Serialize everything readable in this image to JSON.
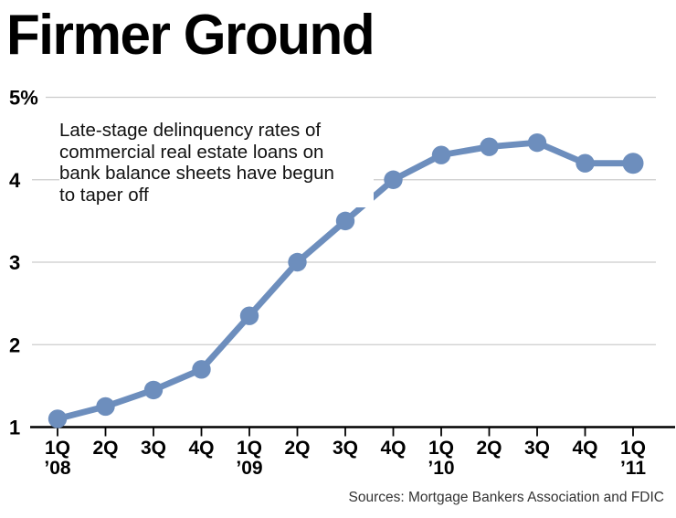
{
  "source": "Sources: Mortgage Bankers Association and FDIC",
  "annotation": {
    "lines": [
      "Late-stage delinquency rates of",
      "commercial real estate loans on",
      "bank balance sheets have begun",
      "to taper off"
    ]
  },
  "chart_data": {
    "type": "line",
    "title": "Firmer Ground",
    "subtitle": "Late-stage delinquency rates of commercial real estate loans on bank balance sheets have begun to taper off",
    "categories": [
      "1Q ’08",
      "2Q ’08",
      "3Q ’08",
      "4Q ’08",
      "1Q ’09",
      "2Q ’09",
      "3Q ’09",
      "4Q ’09",
      "1Q ’10",
      "2Q ’10",
      "3Q ’10",
      "4Q ’10",
      "1Q ’11"
    ],
    "x_tick_labels": [
      "1Q",
      "2Q",
      "3Q",
      "4Q",
      "1Q",
      "2Q",
      "3Q",
      "4Q",
      "1Q",
      "2Q",
      "3Q",
      "4Q",
      "1Q"
    ],
    "x_year_labels": [
      {
        "index": 0,
        "label": "’08"
      },
      {
        "index": 4,
        "label": "’09"
      },
      {
        "index": 8,
        "label": "’10"
      },
      {
        "index": 12,
        "label": "’11"
      }
    ],
    "values": [
      1.1,
      1.25,
      1.45,
      1.7,
      2.35,
      3.0,
      3.5,
      4.0,
      4.3,
      4.4,
      4.45,
      4.2,
      4.2
    ],
    "unit": "%",
    "y_ticks": [
      {
        "value": 5,
        "label": "5%"
      },
      {
        "value": 4,
        "label": "4"
      },
      {
        "value": 3,
        "label": "3"
      },
      {
        "value": 2,
        "label": "2"
      },
      {
        "value": 1,
        "label": "1"
      }
    ],
    "ylim": [
      1,
      5
    ],
    "grid": true,
    "legend": "none",
    "source": "Sources: Mortgage Bankers Association and FDIC",
    "colors": {
      "line": "#6d8ebd",
      "grid": "#cccccc",
      "axis": "#000000",
      "text": "#000000",
      "source_text": "#333333"
    }
  }
}
